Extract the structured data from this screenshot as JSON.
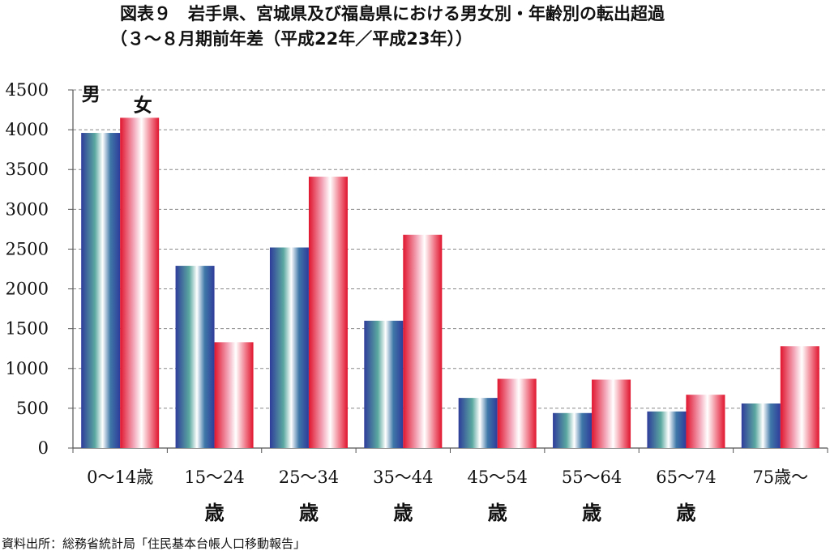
{
  "title": {
    "line1": "図表９　岩手県、宮城県及び福島県における男女別・年齢別の転出超過",
    "line2": "（３～８月期前年差（平成22年／平成23年））"
  },
  "source": "資料出所：総務省統計局「住民基本台帳人口移動報告」",
  "chart_data": {
    "type": "bar",
    "categories": [
      "0〜14歳",
      "15〜24歳",
      "25〜34歳",
      "35〜44歳",
      "45〜54歳",
      "55〜64歳",
      "65〜74歳",
      "75歳〜"
    ],
    "category_lines": [
      [
        "0〜14歳"
      ],
      [
        "15〜24",
        "歳"
      ],
      [
        "25〜34",
        "歳"
      ],
      [
        "35〜44",
        "歳"
      ],
      [
        "45〜54",
        "歳"
      ],
      [
        "55〜64",
        "歳"
      ],
      [
        "65〜74",
        "歳"
      ],
      [
        "75歳〜"
      ]
    ],
    "series": [
      {
        "name": "男",
        "values": [
          3960,
          2290,
          2520,
          1600,
          630,
          440,
          460,
          560
        ]
      },
      {
        "name": "女",
        "values": [
          4150,
          1330,
          3410,
          2680,
          870,
          860,
          670,
          1280
        ]
      }
    ],
    "ylim": [
      0,
      4500
    ],
    "yticks": [
      0,
      500,
      1000,
      1500,
      2000,
      2500,
      3000,
      3500,
      4000,
      4500
    ],
    "grid": true,
    "legend": "labels above first category bars",
    "colors": {
      "male_edge": "#2f3f9a",
      "male_mid": "#ffffff",
      "female_edge": "#e0152e",
      "female_mid": "#ffffff",
      "grid": "#888888"
    }
  }
}
